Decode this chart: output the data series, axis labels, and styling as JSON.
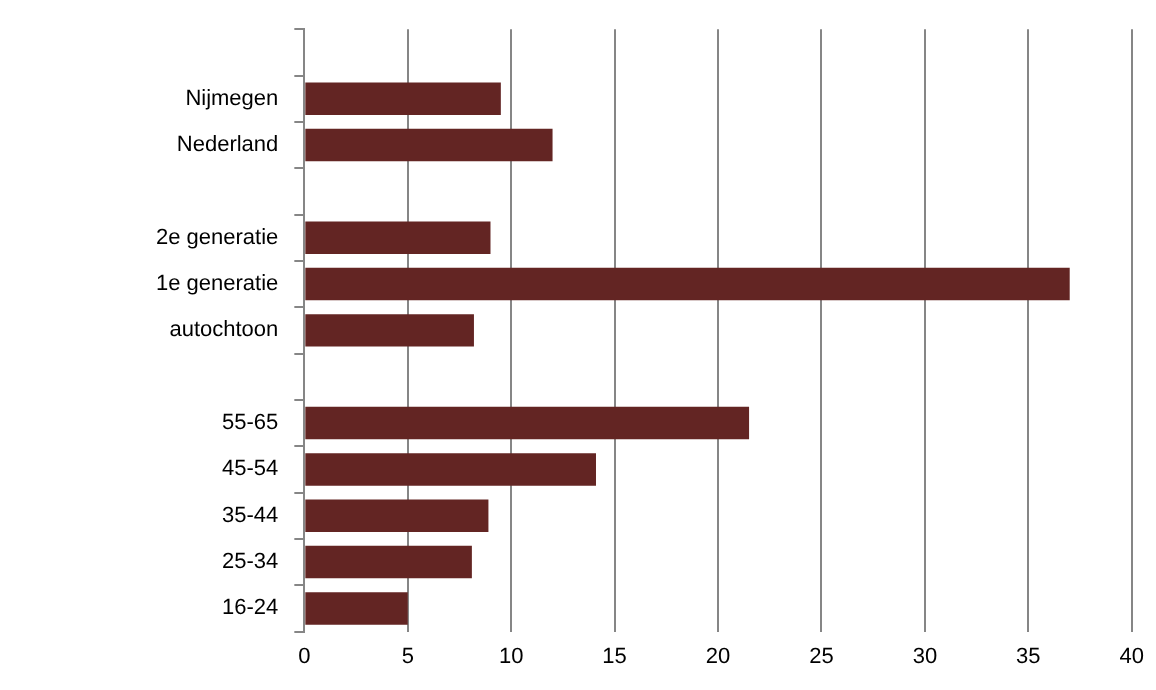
{
  "chart_data": {
    "type": "bar",
    "orientation": "horizontal",
    "categories": [
      null,
      "Nijmegen",
      "Nederland",
      null,
      "2e generatie",
      "1e generatie",
      "autochtoon",
      null,
      "55-65",
      "45-54",
      "35-44",
      "25-34",
      "16-24"
    ],
    "values": [
      null,
      9.5,
      12.0,
      null,
      9.0,
      37.0,
      8.2,
      null,
      21.5,
      14.1,
      8.9,
      8.1,
      5.0
    ],
    "color": "#632523",
    "xlim": [
      0,
      40
    ],
    "xticks": [
      0,
      5,
      10,
      15,
      20,
      25,
      30,
      35,
      40
    ],
    "grid": "x",
    "legend": false
  }
}
